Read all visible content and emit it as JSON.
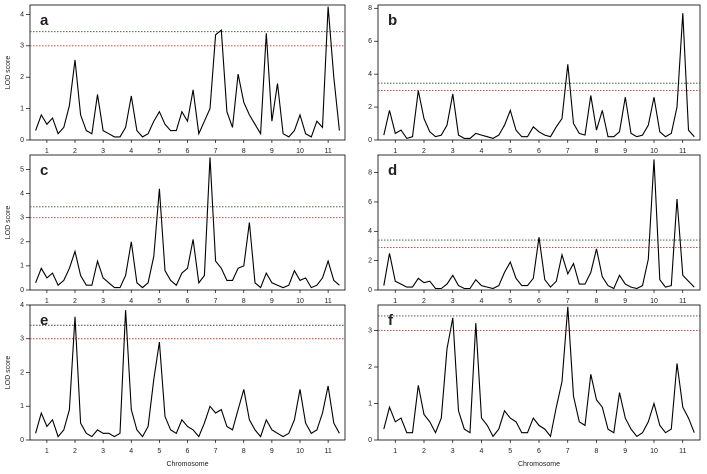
{
  "chart_data": [
    {
      "type": "line",
      "title": "a",
      "ylabel": "LOD score",
      "xlim": [
        0.4,
        11.6
      ],
      "xticks": [
        1,
        2,
        3,
        4,
        5,
        6,
        7,
        8,
        9,
        10,
        11
      ],
      "ylim": [
        0,
        4.3
      ],
      "yticks": [
        0,
        1,
        2,
        3,
        4
      ],
      "thresholds": [
        {
          "value": 3.45,
          "color": "#2f4f2f"
        },
        {
          "value": 3.0,
          "color": "#c0392b"
        }
      ],
      "x": [
        0.6,
        0.8,
        1,
        1.2,
        1.4,
        1.6,
        1.8,
        2,
        2.2,
        2.4,
        2.6,
        2.8,
        3,
        3.2,
        3.4,
        3.6,
        3.8,
        4,
        4.2,
        4.4,
        4.6,
        4.8,
        5,
        5.2,
        5.4,
        5.6,
        5.8,
        6,
        6.2,
        6.4,
        6.6,
        6.8,
        7,
        7.2,
        7.4,
        7.6,
        7.8,
        8,
        8.2,
        8.4,
        8.6,
        8.8,
        9,
        9.2,
        9.4,
        9.6,
        9.8,
        10,
        10.2,
        10.4,
        10.6,
        10.8,
        11,
        11.2,
        11.4
      ],
      "color": "#000000",
      "values": [
        0.3,
        0.8,
        0.5,
        0.7,
        0.2,
        0.4,
        1.1,
        2.55,
        0.8,
        0.3,
        0.2,
        1.45,
        0.3,
        0.2,
        0.1,
        0.1,
        0.4,
        1.4,
        0.3,
        0.1,
        0.2,
        0.6,
        0.9,
        0.5,
        0.3,
        0.3,
        0.9,
        0.6,
        1.6,
        0.2,
        0.6,
        1.0,
        3.35,
        3.5,
        0.9,
        0.4,
        2.1,
        1.2,
        0.8,
        0.5,
        0.2,
        3.4,
        0.6,
        1.8,
        0.2,
        0.1,
        0.3,
        0.8,
        0.2,
        0.1,
        0.6,
        0.4,
        4.25,
        2.0,
        0.3
      ]
    },
    {
      "type": "line",
      "title": "b",
      "xlim": [
        0.4,
        11.6
      ],
      "xticks": [
        1,
        2,
        3,
        4,
        5,
        6,
        7,
        8,
        9,
        10,
        11
      ],
      "ylim": [
        0,
        8.2
      ],
      "yticks": [
        0,
        2,
        4,
        6,
        8
      ],
      "thresholds": [
        {
          "value": 3.45,
          "color": "#2f4f2f"
        },
        {
          "value": 3.0,
          "color": "#c0392b"
        }
      ],
      "x": [
        0.6,
        0.8,
        1,
        1.2,
        1.4,
        1.6,
        1.8,
        2,
        2.2,
        2.4,
        2.6,
        2.8,
        3,
        3.2,
        3.4,
        3.6,
        3.8,
        4,
        4.2,
        4.4,
        4.6,
        4.8,
        5,
        5.2,
        5.4,
        5.6,
        5.8,
        6,
        6.2,
        6.4,
        6.6,
        6.8,
        7,
        7.2,
        7.4,
        7.6,
        7.8,
        8,
        8.2,
        8.4,
        8.6,
        8.8,
        9,
        9.2,
        9.4,
        9.6,
        9.8,
        10,
        10.2,
        10.4,
        10.6,
        10.8,
        11,
        11.2,
        11.4
      ],
      "color": "#000000",
      "values": [
        0.3,
        1.8,
        0.4,
        0.6,
        0.1,
        0.2,
        3.0,
        1.3,
        0.5,
        0.2,
        0.3,
        0.9,
        2.8,
        0.3,
        0.1,
        0.1,
        0.4,
        0.3,
        0.2,
        0.1,
        0.3,
        0.9,
        1.8,
        0.6,
        0.2,
        0.2,
        0.8,
        0.5,
        0.3,
        0.2,
        0.8,
        1.3,
        4.6,
        1.0,
        0.4,
        0.3,
        2.7,
        0.6,
        1.8,
        0.2,
        0.2,
        0.5,
        2.6,
        0.4,
        0.2,
        0.3,
        0.9,
        2.6,
        0.5,
        0.2,
        0.4,
        2.0,
        7.7,
        0.6,
        0.2
      ]
    },
    {
      "type": "line",
      "title": "c",
      "ylabel": "LOD score",
      "xlim": [
        0.4,
        11.6
      ],
      "xticks": [
        1,
        2,
        3,
        4,
        5,
        6,
        7,
        8,
        9,
        10,
        11
      ],
      "ylim": [
        0,
        5.6
      ],
      "yticks": [
        0,
        1,
        2,
        3,
        4,
        5
      ],
      "thresholds": [
        {
          "value": 3.45,
          "color": "#2f4f2f"
        },
        {
          "value": 3.0,
          "color": "#c0392b"
        }
      ],
      "x": [
        0.6,
        0.8,
        1,
        1.2,
        1.4,
        1.6,
        1.8,
        2,
        2.2,
        2.4,
        2.6,
        2.8,
        3,
        3.2,
        3.4,
        3.6,
        3.8,
        4,
        4.2,
        4.4,
        4.6,
        4.8,
        5,
        5.2,
        5.4,
        5.6,
        5.8,
        6,
        6.2,
        6.4,
        6.6,
        6.8,
        7,
        7.2,
        7.4,
        7.6,
        7.8,
        8,
        8.2,
        8.4,
        8.6,
        8.8,
        9,
        9.2,
        9.4,
        9.6,
        9.8,
        10,
        10.2,
        10.4,
        10.6,
        10.8,
        11,
        11.2,
        11.4
      ],
      "color": "#000000",
      "values": [
        0.3,
        0.9,
        0.5,
        0.7,
        0.2,
        0.4,
        0.9,
        1.6,
        0.6,
        0.2,
        0.2,
        1.2,
        0.5,
        0.3,
        0.1,
        0.1,
        0.6,
        2.0,
        0.3,
        0.1,
        0.3,
        1.4,
        4.2,
        0.8,
        0.4,
        0.2,
        0.7,
        0.9,
        2.1,
        0.3,
        0.6,
        5.5,
        1.2,
        0.9,
        0.4,
        0.4,
        0.9,
        1.0,
        2.8,
        0.3,
        0.1,
        0.7,
        0.3,
        0.2,
        0.1,
        0.2,
        0.8,
        0.4,
        0.5,
        0.1,
        0.2,
        0.5,
        1.2,
        0.4,
        0.2
      ]
    },
    {
      "type": "line",
      "title": "d",
      "xlim": [
        0.4,
        11.6
      ],
      "xticks": [
        1,
        2,
        3,
        4,
        5,
        6,
        7,
        8,
        9,
        10,
        11
      ],
      "ylim": [
        0,
        9.2
      ],
      "yticks": [
        0,
        2,
        4,
        6,
        8
      ],
      "thresholds": [
        {
          "value": 3.4,
          "color": "#2f4f2f"
        },
        {
          "value": 2.9,
          "color": "#c0392b"
        }
      ],
      "x": [
        0.6,
        0.8,
        1,
        1.2,
        1.4,
        1.6,
        1.8,
        2,
        2.2,
        2.4,
        2.6,
        2.8,
        3,
        3.2,
        3.4,
        3.6,
        3.8,
        4,
        4.2,
        4.4,
        4.6,
        4.8,
        5,
        5.2,
        5.4,
        5.6,
        5.8,
        6,
        6.2,
        6.4,
        6.6,
        6.8,
        7,
        7.2,
        7.4,
        7.6,
        7.8,
        8,
        8.2,
        8.4,
        8.6,
        8.8,
        9,
        9.2,
        9.4,
        9.6,
        9.8,
        10,
        10.2,
        10.4,
        10.6,
        10.8,
        11,
        11.2,
        11.4
      ],
      "color": "#000000",
      "values": [
        0.3,
        2.5,
        0.6,
        0.4,
        0.2,
        0.2,
        0.8,
        0.5,
        0.6,
        0.1,
        0.1,
        0.4,
        1.0,
        0.3,
        0.1,
        0.1,
        0.7,
        0.3,
        0.2,
        0.1,
        0.3,
        1.2,
        1.9,
        0.8,
        0.3,
        0.3,
        0.8,
        3.6,
        0.7,
        0.2,
        0.6,
        2.4,
        1.1,
        1.8,
        0.4,
        0.4,
        1.2,
        2.8,
        0.9,
        0.3,
        0.1,
        1.0,
        0.4,
        0.2,
        0.1,
        0.3,
        2.1,
        8.9,
        0.7,
        0.2,
        0.3,
        6.2,
        1.0,
        0.6,
        0.2
      ]
    },
    {
      "type": "line",
      "title": "e",
      "ylabel": "LOD score",
      "xlabel": "Chromosome",
      "xlim": [
        0.4,
        11.6
      ],
      "xticks": [
        1,
        2,
        3,
        4,
        5,
        6,
        7,
        8,
        9,
        10,
        11
      ],
      "ylim": [
        0,
        4
      ],
      "yticks": [
        0,
        1,
        2,
        3,
        4
      ],
      "thresholds": [
        {
          "value": 3.4,
          "color": "#2f4f2f"
        },
        {
          "value": 3.0,
          "color": "#c0392b"
        }
      ],
      "x": [
        0.6,
        0.8,
        1,
        1.2,
        1.4,
        1.6,
        1.8,
        2,
        2.2,
        2.4,
        2.6,
        2.8,
        3,
        3.2,
        3.4,
        3.6,
        3.8,
        4,
        4.2,
        4.4,
        4.6,
        4.8,
        5,
        5.2,
        5.4,
        5.6,
        5.8,
        6,
        6.2,
        6.4,
        6.6,
        6.8,
        7,
        7.2,
        7.4,
        7.6,
        7.8,
        8,
        8.2,
        8.4,
        8.6,
        8.8,
        9,
        9.2,
        9.4,
        9.6,
        9.8,
        10,
        10.2,
        10.4,
        10.6,
        10.8,
        11,
        11.2,
        11.4
      ],
      "color": "#000000",
      "values": [
        0.2,
        0.8,
        0.4,
        0.6,
        0.1,
        0.3,
        0.9,
        3.65,
        0.5,
        0.2,
        0.1,
        0.3,
        0.2,
        0.2,
        0.1,
        0.2,
        3.85,
        0.9,
        0.3,
        0.1,
        0.4,
        1.8,
        2.9,
        0.7,
        0.3,
        0.2,
        0.6,
        0.4,
        0.3,
        0.1,
        0.5,
        1.0,
        0.8,
        0.9,
        0.4,
        0.3,
        0.9,
        1.5,
        0.6,
        0.3,
        0.1,
        0.6,
        0.3,
        0.2,
        0.1,
        0.2,
        0.6,
        1.5,
        0.5,
        0.2,
        0.3,
        0.8,
        1.6,
        0.5,
        0.2
      ]
    },
    {
      "type": "line",
      "title": "f",
      "xlabel": "Chromosome",
      "xlim": [
        0.4,
        11.6
      ],
      "xticks": [
        1,
        2,
        3,
        4,
        5,
        6,
        7,
        8,
        9,
        10,
        11
      ],
      "ylim": [
        0,
        3.7
      ],
      "yticks": [
        0,
        1,
        2,
        3
      ],
      "thresholds": [
        {
          "value": 3.4,
          "color": "#2f4f2f"
        },
        {
          "value": 3.0,
          "color": "#c0392b"
        }
      ],
      "x": [
        0.6,
        0.8,
        1,
        1.2,
        1.4,
        1.6,
        1.8,
        2,
        2.2,
        2.4,
        2.6,
        2.8,
        3,
        3.2,
        3.4,
        3.6,
        3.8,
        4,
        4.2,
        4.4,
        4.6,
        4.8,
        5,
        5.2,
        5.4,
        5.6,
        5.8,
        6,
        6.2,
        6.4,
        6.6,
        6.8,
        7,
        7.2,
        7.4,
        7.6,
        7.8,
        8,
        8.2,
        8.4,
        8.6,
        8.8,
        9,
        9.2,
        9.4,
        9.6,
        9.8,
        10,
        10.2,
        10.4,
        10.6,
        10.8,
        11,
        11.2,
        11.4
      ],
      "color": "#000000",
      "values": [
        0.3,
        0.9,
        0.5,
        0.6,
        0.2,
        0.2,
        1.5,
        0.7,
        0.5,
        0.2,
        0.6,
        2.5,
        3.35,
        0.8,
        0.3,
        0.2,
        3.2,
        0.6,
        0.4,
        0.1,
        0.3,
        0.8,
        0.6,
        0.5,
        0.2,
        0.2,
        0.6,
        0.4,
        0.3,
        0.1,
        0.9,
        1.6,
        3.65,
        1.2,
        0.5,
        0.4,
        1.8,
        1.1,
        0.9,
        0.3,
        0.2,
        1.3,
        0.6,
        0.3,
        0.1,
        0.2,
        0.5,
        1.0,
        0.4,
        0.2,
        0.3,
        2.1,
        0.9,
        0.6,
        0.2
      ]
    }
  ]
}
